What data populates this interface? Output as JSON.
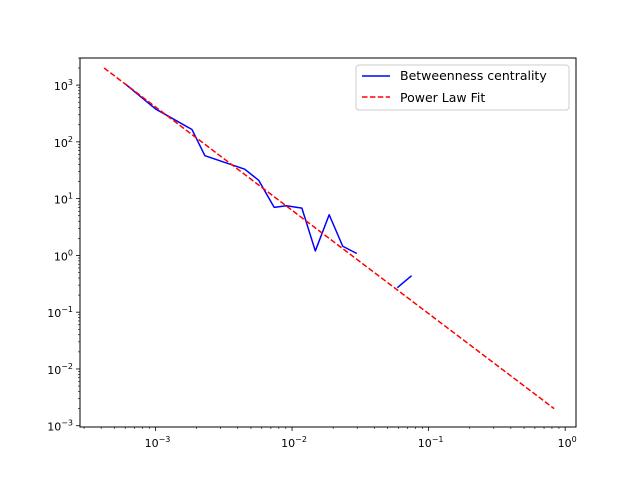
{
  "chart_data": {
    "type": "line",
    "title": "",
    "xlabel": "",
    "ylabel": "",
    "x_scale": "log",
    "y_scale": "log",
    "xlim": [
      0.00028,
      1.2
    ],
    "ylim": [
      0.00095,
      3000
    ],
    "grid": false,
    "legend_position": "top-right",
    "x_ticks": [
      {
        "value": 0.001,
        "base": "10",
        "exp": "−3"
      },
      {
        "value": 0.01,
        "base": "10",
        "exp": "−2"
      },
      {
        "value": 0.1,
        "base": "10",
        "exp": "−1"
      },
      {
        "value": 1,
        "base": "10",
        "exp": "0"
      }
    ],
    "y_ticks": [
      {
        "value": 0.001,
        "base": "10",
        "exp": "−3"
      },
      {
        "value": 0.01,
        "base": "10",
        "exp": "−2"
      },
      {
        "value": 0.1,
        "base": "10",
        "exp": "−1"
      },
      {
        "value": 1,
        "base": "10",
        "exp": "0"
      },
      {
        "value": 10,
        "base": "10",
        "exp": "1"
      },
      {
        "value": 100,
        "base": "10",
        "exp": "2"
      },
      {
        "value": 1000,
        "base": "10",
        "exp": "3"
      }
    ],
    "series": [
      {
        "name": "Betweenness centrality",
        "style": "solid",
        "color": "#0000ff",
        "segments": [
          [
            [
              0.0006,
              1050
            ],
            [
              0.001,
              380
            ],
            [
              0.00185,
              165
            ],
            [
              0.0023,
              57
            ],
            [
              0.0045,
              33
            ],
            [
              0.0057,
              21
            ],
            [
              0.0074,
              7
            ],
            [
              0.0091,
              7.5
            ],
            [
              0.0118,
              6.8
            ],
            [
              0.0148,
              1.2
            ],
            [
              0.0187,
              5.2
            ],
            [
              0.0235,
              1.45
            ],
            [
              0.0298,
              1.08
            ]
          ],
          [
            [
              0.059,
              0.27
            ],
            [
              0.075,
              0.44
            ]
          ]
        ]
      },
      {
        "name": "Power Law Fit",
        "style": "dashed",
        "color": "#ff0000",
        "segments": [
          [
            [
              0.00042,
              2000
            ],
            [
              0.83,
              0.002
            ]
          ]
        ]
      }
    ]
  }
}
